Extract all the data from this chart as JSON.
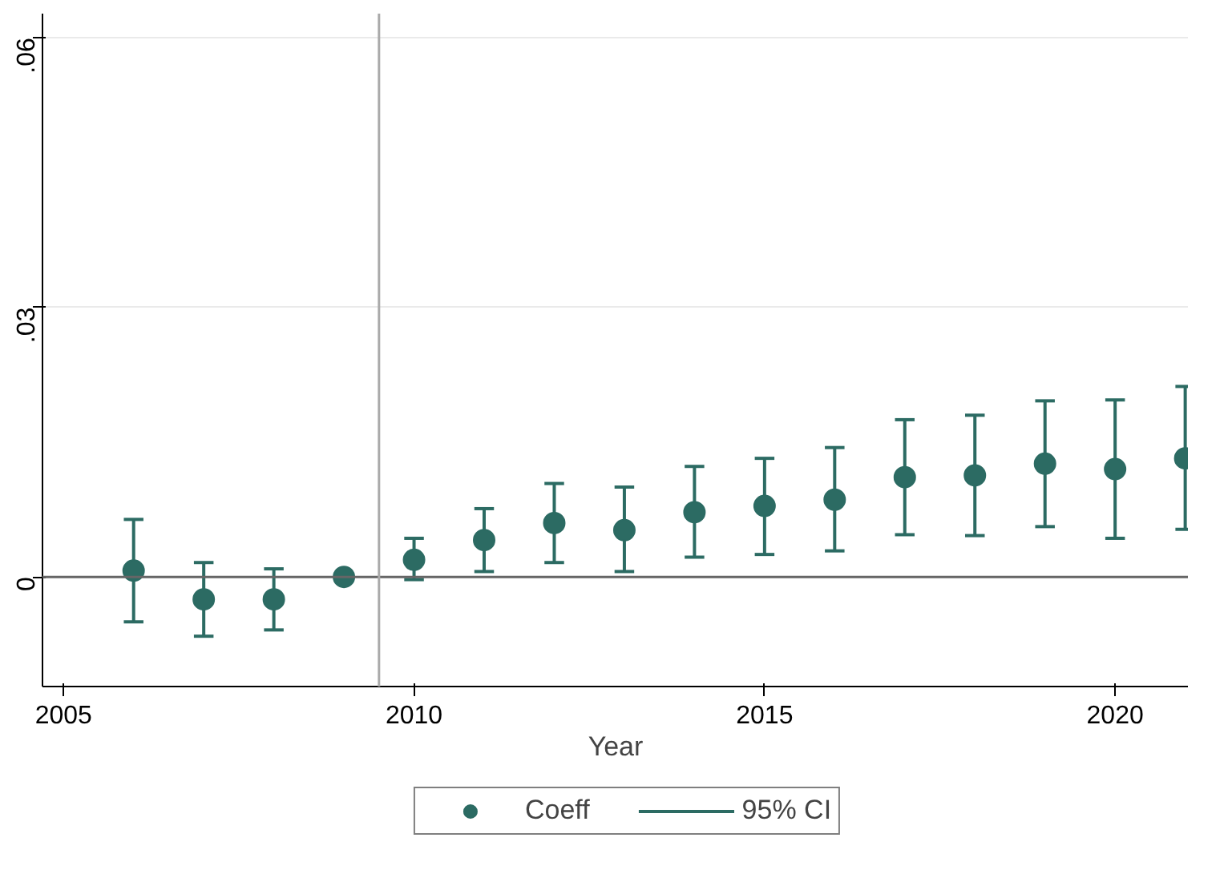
{
  "chart_data": {
    "type": "scatter",
    "xlabel": "Year",
    "x": [
      2006,
      2007,
      2008,
      2009,
      2010,
      2011,
      2012,
      2013,
      2014,
      2015,
      2016,
      2017,
      2018,
      2019,
      2020,
      2021
    ],
    "series": [
      {
        "name": "Coeff",
        "color": "#2c6b63",
        "values": [
          0.0007,
          -0.0025,
          -0.0025,
          0,
          0.0019,
          0.0041,
          0.006,
          0.0052,
          0.0072,
          0.0079,
          0.0086,
          0.0111,
          0.0113,
          0.0126,
          0.012,
          0.0132
        ],
        "errors": [
          [
            -0.005,
            0.0064
          ],
          [
            -0.0066,
            0.0016
          ],
          [
            -0.0059,
            0.0009
          ],
          null,
          [
            -0.0003,
            0.0043
          ],
          [
            0.0006,
            0.0076
          ],
          [
            0.0016,
            0.0104
          ],
          [
            0.0006,
            0.01
          ],
          [
            0.0022,
            0.0123
          ],
          [
            0.0025,
            0.0132
          ],
          [
            0.0029,
            0.0144
          ],
          [
            0.0047,
            0.0175
          ],
          [
            0.0046,
            0.018
          ],
          [
            0.0056,
            0.0196
          ],
          [
            0.0043,
            0.0197
          ],
          [
            0.0053,
            0.0212
          ]
        ]
      }
    ],
    "annotations": [
      "95% CI"
    ],
    "xlim": [
      2004.7,
      2021.05
    ],
    "xticks": [
      2005,
      2010,
      2015,
      2020
    ],
    "ylim": [
      -0.0122,
      0.0627
    ],
    "yticks": [
      {
        "value": 0,
        "label": "0"
      },
      {
        "value": 0.03,
        "label": ".03"
      },
      {
        "value": 0.06,
        "label": ".06"
      }
    ],
    "ref_lines": [
      {
        "axis": "y",
        "value": 0,
        "color": "#666666"
      },
      {
        "axis": "x",
        "value": 2009.5,
        "color": "#aaaaaa"
      }
    ],
    "grid": "y",
    "legend": "bottom",
    "marker": "circle"
  }
}
